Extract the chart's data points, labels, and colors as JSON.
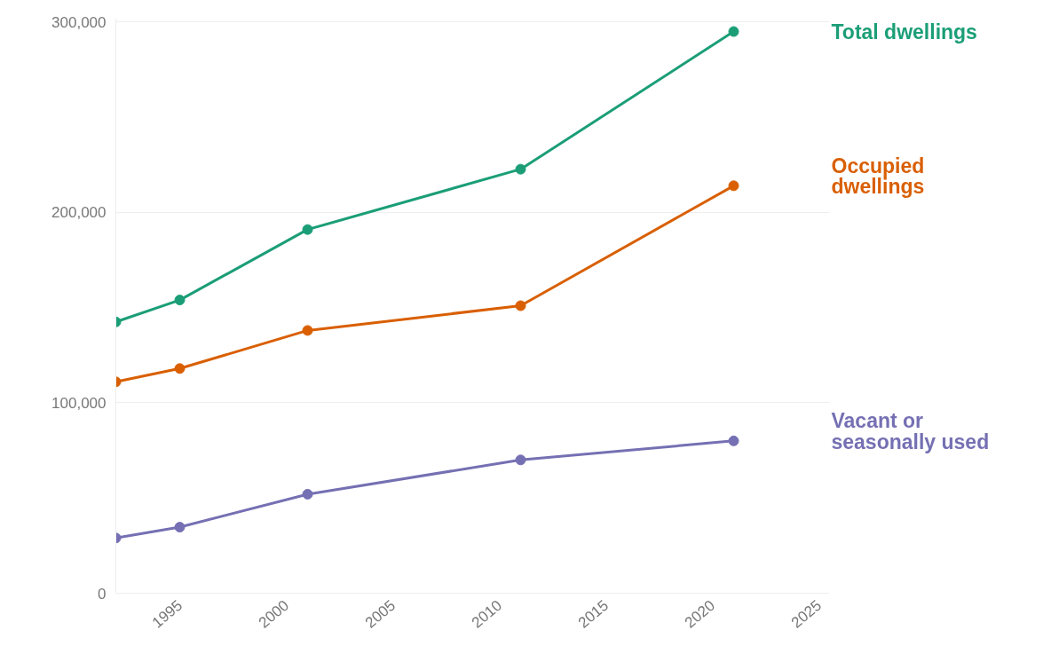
{
  "chart_data": {
    "type": "line",
    "x": [
      1992,
      1995,
      2001,
      2011,
      2021
    ],
    "series": [
      {
        "name": "Total dwellings",
        "color": "#1b9e77",
        "values": [
          142500,
          154000,
          191000,
          222700,
          295000
        ]
      },
      {
        "name": "Occupied\ndwellings",
        "color": "#d95f02",
        "values": [
          111000,
          118000,
          138000,
          151000,
          214000
        ]
      },
      {
        "name": "Vacant or\nseasonally used",
        "color": "#7570b3",
        "values": [
          29000,
          34700,
          52000,
          70000,
          80000
        ]
      }
    ],
    "xlim": [
      1992,
      2025.5
    ],
    "xticks": [
      1995,
      2000,
      2005,
      2010,
      2015,
      2020,
      2025
    ],
    "ylim": [
      0,
      302000
    ],
    "yticks": [
      {
        "value": 0,
        "label": "0"
      },
      {
        "value": 100000,
        "label": "100,000"
      },
      {
        "value": 200000,
        "label": "200,000"
      },
      {
        "value": 300000,
        "label": "300,000"
      }
    ],
    "grid": "y",
    "legend": false,
    "marker": "circle",
    "line_style": "solid"
  }
}
